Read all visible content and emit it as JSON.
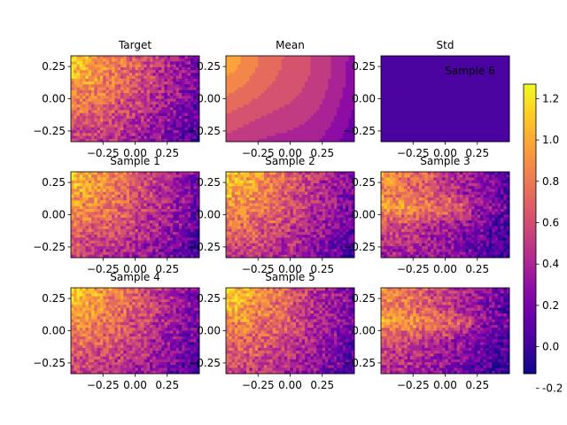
{
  "chart_data": {
    "type": "heatmap",
    "layout": "3x3 grid with shared colorbar on the right",
    "colormap": "plasma",
    "color_range": [
      -0.13,
      1.27
    ],
    "colorbar_ticks": [
      {
        "value": 1.2,
        "label": "1.2"
      },
      {
        "value": 1.0,
        "label": "1.0"
      },
      {
        "value": 0.8,
        "label": "0.8"
      },
      {
        "value": 0.6,
        "label": "0.6"
      },
      {
        "value": 0.4,
        "label": "0.4"
      },
      {
        "value": 0.2,
        "label": "0.2"
      },
      {
        "value": 0.0,
        "label": "0.0"
      },
      {
        "value": -0.2,
        "label": "-0.2"
      }
    ],
    "xlim": [
      -0.5,
      0.5
    ],
    "ylim": [
      -0.333,
      0.333
    ],
    "x_ticks": [
      {
        "value": -0.25,
        "label": "−0.25"
      },
      {
        "value": 0.0,
        "label": "0.00"
      },
      {
        "value": 0.25,
        "label": "0.25"
      }
    ],
    "y_ticks": [
      {
        "value": 0.25,
        "label": "0.25"
      },
      {
        "value": 0.0,
        "label": "0.00"
      },
      {
        "value": -0.25,
        "label": "−0.25"
      }
    ],
    "panels": [
      {
        "title": "Target",
        "kind": "field",
        "seed": 11
      },
      {
        "title": "Mean",
        "kind": "mean",
        "seed": 0
      },
      {
        "title": "Std",
        "kind": "std",
        "seed": 0,
        "annotation": "Sample 6"
      },
      {
        "title": "Sample 1",
        "kind": "field",
        "seed": 21
      },
      {
        "title": "Sample 2",
        "kind": "field",
        "seed": 32
      },
      {
        "title": "Sample 3",
        "kind": "field_low",
        "seed": 43
      },
      {
        "title": "Sample 4",
        "kind": "field",
        "seed": 54
      },
      {
        "title": "Sample 5",
        "kind": "field",
        "seed": 65
      },
      {
        "title": "",
        "kind": "field_low",
        "seed": 76
      }
    ]
  }
}
